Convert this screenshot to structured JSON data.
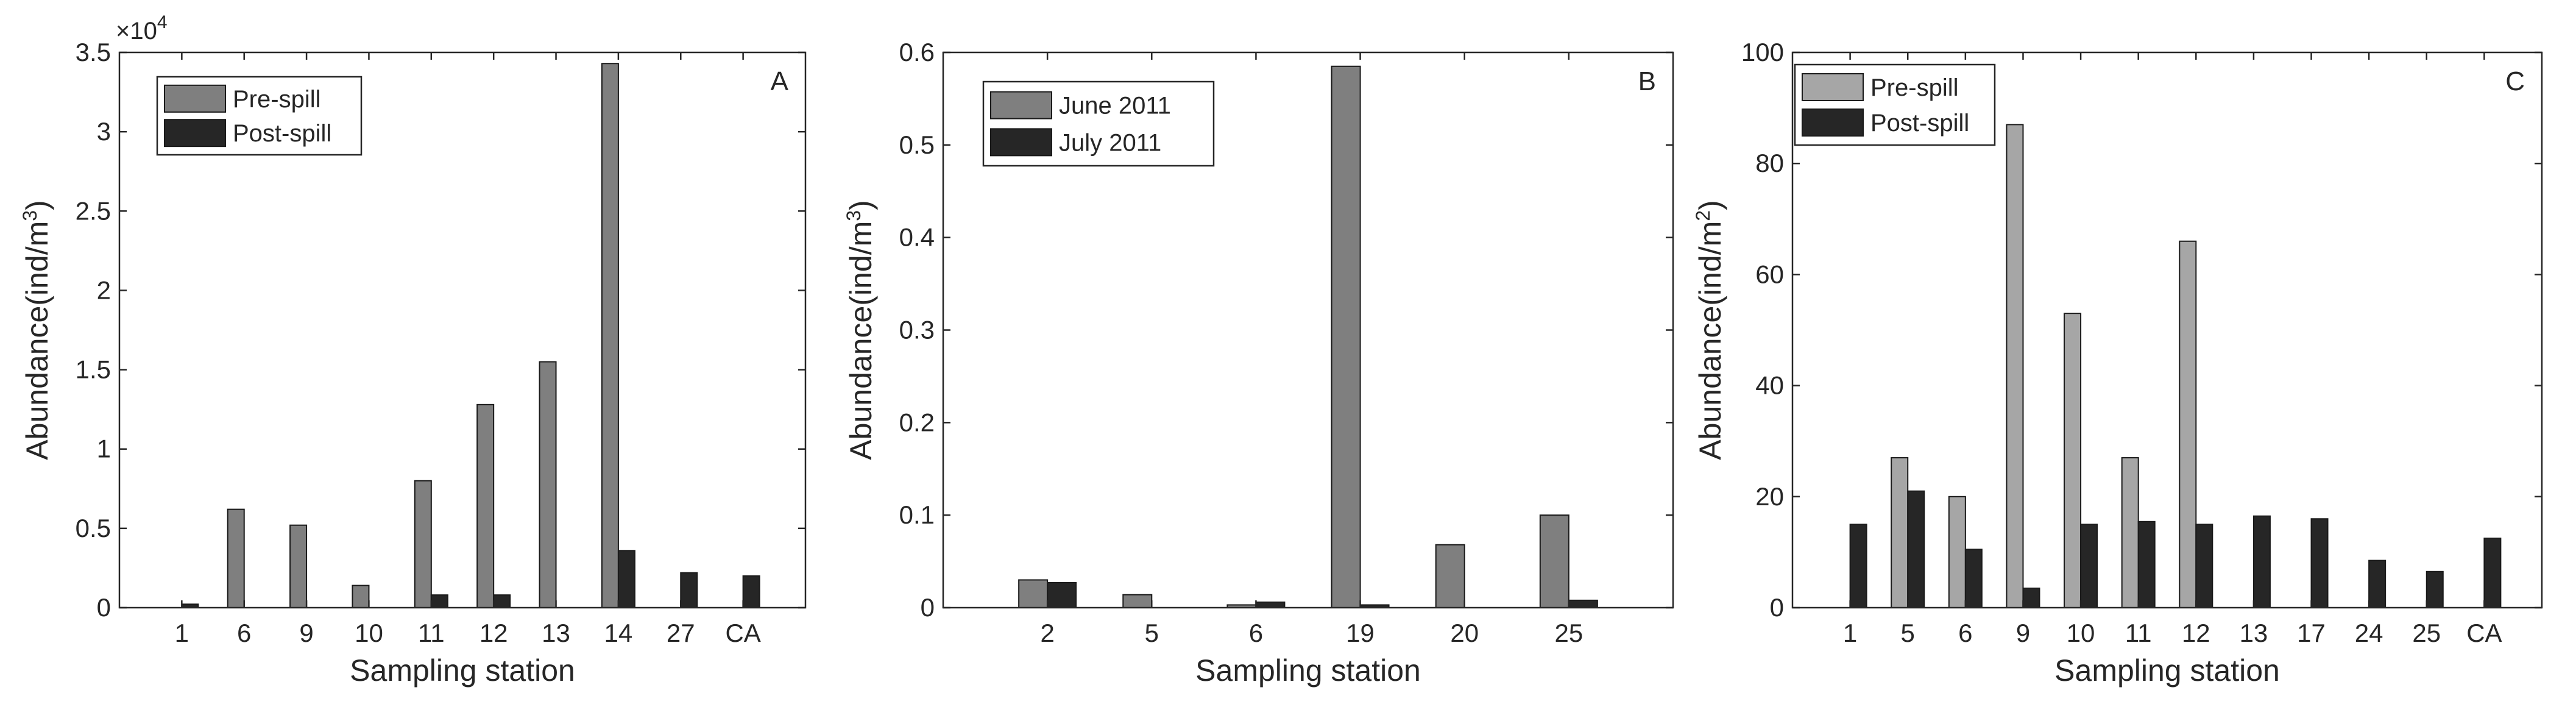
{
  "chart_data": [
    {
      "type": "bar",
      "panel_label": "A",
      "title": "",
      "xlabel": "Sampling station",
      "ylabel": "Abundance(ind/m",
      "ylabel_sup": "3",
      "ylabel_close": ")",
      "y_multiplier": "×10",
      "y_multiplier_exp": "4",
      "categories": [
        "1",
        "6",
        "9",
        "10",
        "11",
        "12",
        "13",
        "14",
        "27",
        "CA"
      ],
      "series": [
        {
          "name": "Pre-spill",
          "color": "#7f7f7f",
          "values": [
            0,
            6200,
            5200,
            1400,
            8000,
            12800,
            15500,
            34300,
            0,
            0
          ]
        },
        {
          "name": "Post-spill",
          "color": "#262626",
          "values": [
            220,
            0,
            0,
            0,
            800,
            800,
            0,
            3600,
            2200,
            2000
          ]
        }
      ],
      "ylim": [
        0,
        35000
      ],
      "yticks": [
        0,
        5000,
        10000,
        15000,
        20000,
        25000,
        30000,
        35000
      ],
      "ytick_labels": [
        "0",
        "0.5",
        "1",
        "1.5",
        "2",
        "2.5",
        "3",
        "3.5"
      ],
      "legend_position": "top-left",
      "grid": false
    },
    {
      "type": "bar",
      "panel_label": "B",
      "title": "",
      "xlabel": "Sampling station",
      "ylabel": "Abundance(ind/m",
      "ylabel_sup": "3",
      "ylabel_close": ")",
      "categories": [
        "2",
        "5",
        "6",
        "19",
        "20",
        "25"
      ],
      "series": [
        {
          "name": "June 2011",
          "color": "#7f7f7f",
          "values": [
            0.03,
            0.014,
            0.003,
            0.585,
            0.068,
            0.1
          ]
        },
        {
          "name": "July 2011",
          "color": "#262626",
          "values": [
            0.027,
            0,
            0.006,
            0.003,
            0,
            0.008
          ]
        }
      ],
      "ylim": [
        0,
        0.6
      ],
      "yticks": [
        0,
        0.1,
        0.2,
        0.3,
        0.4,
        0.5,
        0.6
      ],
      "ytick_labels": [
        "0",
        "0.1",
        "0.2",
        "0.3",
        "0.4",
        "0.5",
        "0.6"
      ],
      "legend_position": "top-left",
      "grid": false
    },
    {
      "type": "bar",
      "panel_label": "C",
      "title": "",
      "xlabel": "Sampling station",
      "ylabel": "Abundance(ind/m",
      "ylabel_sup": "2",
      "ylabel_close": ")",
      "categories": [
        "1",
        "5",
        "6",
        "9",
        "10",
        "11",
        "12",
        "13",
        "17",
        "24",
        "25",
        "CA"
      ],
      "series": [
        {
          "name": "Pre-spill",
          "color": "#a6a6a6",
          "values": [
            0,
            27,
            20,
            87,
            53,
            27,
            66,
            0,
            0,
            0,
            0,
            0
          ]
        },
        {
          "name": "Post-spill",
          "color": "#262626",
          "values": [
            15,
            21,
            10.5,
            3.5,
            15,
            15.5,
            15,
            16.5,
            16,
            8.5,
            6.5,
            12.5
          ]
        }
      ],
      "ylim": [
        0,
        100
      ],
      "yticks": [
        0,
        20,
        40,
        60,
        80,
        100
      ],
      "ytick_labels": [
        "0",
        "20",
        "40",
        "60",
        "80",
        "100"
      ],
      "legend_position": "top-left",
      "grid": false
    }
  ]
}
